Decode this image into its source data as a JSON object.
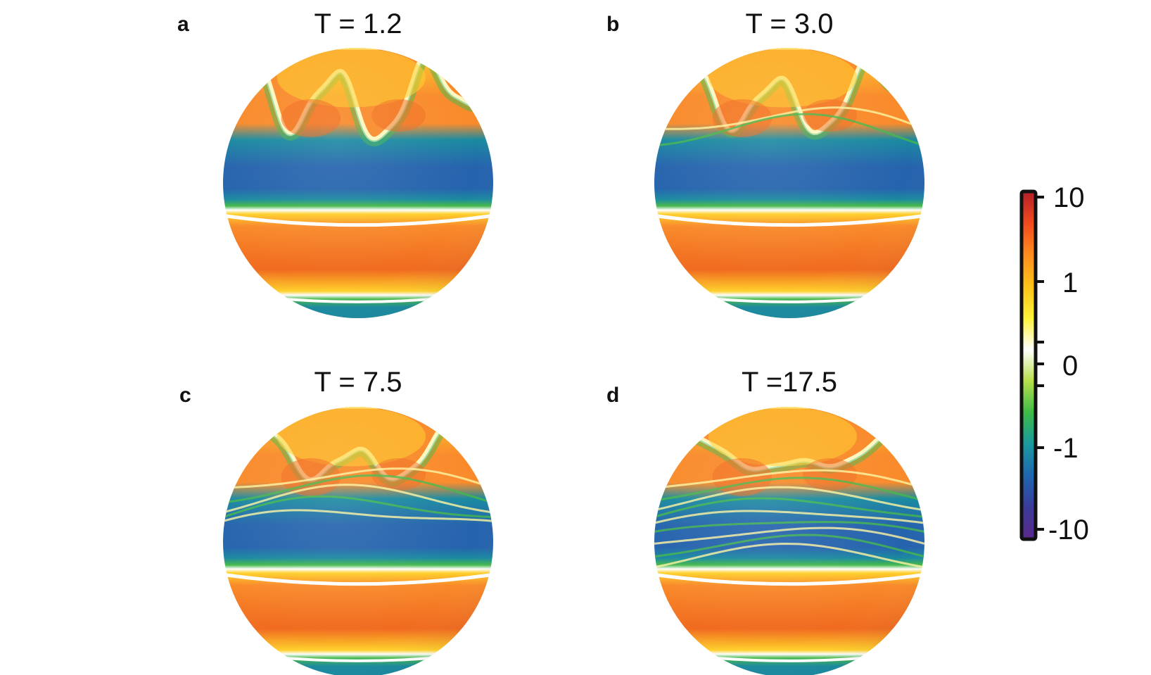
{
  "panels": [
    {
      "letter": "a",
      "title": "T = 1.2",
      "wave_amp": 0.9,
      "fine_bands": 0
    },
    {
      "letter": "b",
      "title": "T = 3.0",
      "wave_amp": 0.75,
      "fine_bands": 2
    },
    {
      "letter": "c",
      "title": "T = 7.5",
      "wave_amp": 0.45,
      "fine_bands": 5
    },
    {
      "letter": "d",
      "title": "T =17.5",
      "wave_amp": 0.15,
      "fine_bands": 9
    }
  ],
  "colorbar": {
    "labels": [
      "10",
      "1",
      "0",
      "-1",
      "-10"
    ],
    "stops": [
      "#5b2a8c",
      "#3a3b9a",
      "#1f66b0",
      "#1a9aa0",
      "#3dbb48",
      "#b7e04a",
      "#ffffff",
      "#fff23a",
      "#ffc21a",
      "#ff8c1e",
      "#f24a1e",
      "#b3202a"
    ]
  },
  "colors": {
    "orange": "#f98a2a",
    "orange_deep": "#f06a1f",
    "yellow": "#ffd02a",
    "blue": "#2563ad",
    "teal": "#1a8aa0",
    "green": "#45b84a"
  }
}
